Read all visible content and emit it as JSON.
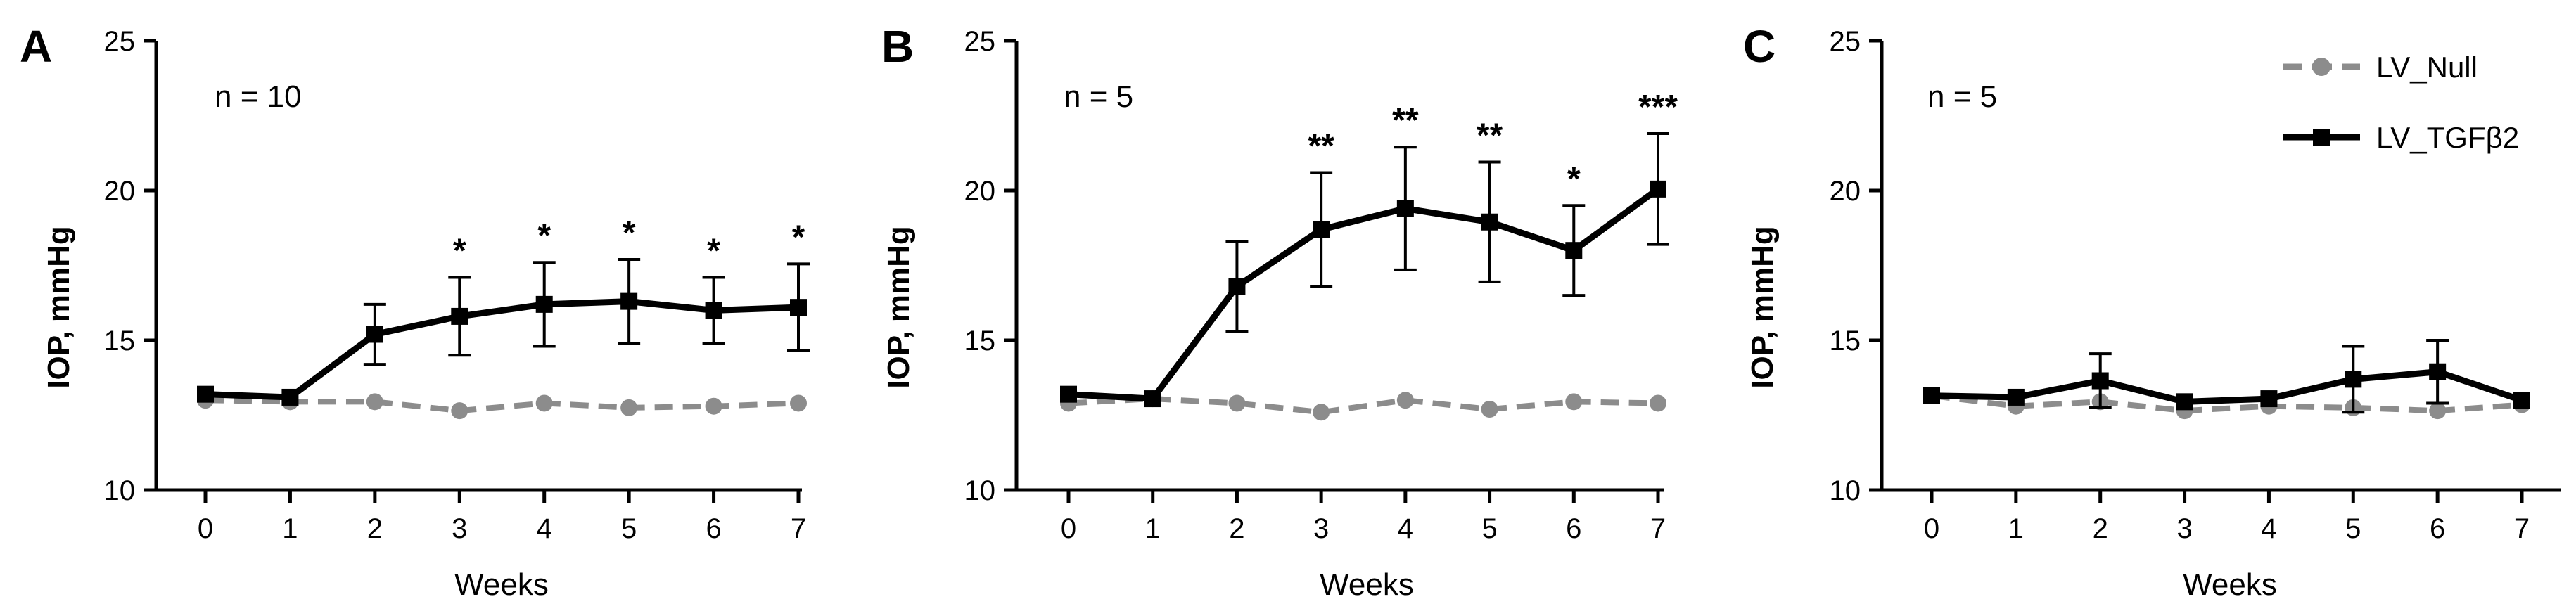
{
  "chart_data": [
    {
      "type": "line",
      "panel": "A",
      "n_label": "n = 10",
      "xlabel": "Weeks",
      "ylabel": "IOP, mmHg",
      "x": [
        0,
        1,
        2,
        3,
        4,
        5,
        6,
        7
      ],
      "xticks": [
        "0",
        "1",
        "2",
        "3",
        "4",
        "5",
        "6",
        "7"
      ],
      "ylim": [
        10,
        25
      ],
      "yticks": [
        "10",
        "15",
        "20",
        "25"
      ],
      "series": [
        {
          "name": "LV_Null",
          "values": [
            13.0,
            12.95,
            12.95,
            12.65,
            12.9,
            12.75,
            12.8,
            12.9
          ],
          "errors": [
            0,
            0,
            0,
            0,
            0,
            0,
            0,
            0
          ]
        },
        {
          "name": "LV_TGFβ2",
          "values": [
            13.2,
            13.1,
            15.2,
            15.8,
            16.2,
            16.3,
            16.0,
            16.1
          ],
          "errors": [
            0,
            0,
            1.0,
            1.3,
            1.4,
            1.4,
            1.1,
            1.45
          ]
        }
      ],
      "significance": [
        "",
        "",
        "",
        "*",
        "*",
        "*",
        "*",
        "*"
      ]
    },
    {
      "type": "line",
      "panel": "B",
      "n_label": "n = 5",
      "xlabel": "Weeks",
      "ylabel": "IOP, mmHg",
      "x": [
        0,
        1,
        2,
        3,
        4,
        5,
        6,
        7
      ],
      "xticks": [
        "0",
        "1",
        "2",
        "3",
        "4",
        "5",
        "6",
        "7"
      ],
      "ylim": [
        10,
        25
      ],
      "yticks": [
        "10",
        "15",
        "20",
        "25"
      ],
      "series": [
        {
          "name": "LV_Null",
          "values": [
            12.9,
            13.05,
            12.9,
            12.6,
            13.0,
            12.7,
            12.95,
            12.9
          ],
          "errors": [
            0,
            0,
            0,
            0,
            0,
            0,
            0,
            0
          ]
        },
        {
          "name": "LV_TGFβ2",
          "values": [
            13.2,
            13.05,
            16.8,
            18.7,
            19.4,
            18.95,
            18.0,
            20.05
          ],
          "errors": [
            0,
            0,
            1.5,
            1.9,
            2.05,
            2.0,
            1.5,
            1.85
          ]
        }
      ],
      "significance": [
        "",
        "",
        "",
        "**",
        "**",
        "**",
        "*",
        "***"
      ]
    },
    {
      "type": "line",
      "panel": "C",
      "n_label": "n = 5",
      "xlabel": "Weeks",
      "ylabel": "IOP, mmHg",
      "x": [
        0,
        1,
        2,
        3,
        4,
        5,
        6,
        7
      ],
      "xticks": [
        "0",
        "1",
        "2",
        "3",
        "4",
        "5",
        "6",
        "7"
      ],
      "ylim": [
        10,
        25
      ],
      "yticks": [
        "10",
        "15",
        "20",
        "25"
      ],
      "series": [
        {
          "name": "LV_Null",
          "values": [
            13.15,
            12.8,
            12.95,
            12.65,
            12.8,
            12.75,
            12.65,
            12.85
          ],
          "errors": [
            0,
            0,
            0,
            0,
            0,
            0,
            0,
            0
          ]
        },
        {
          "name": "LV_TGFβ2",
          "values": [
            13.15,
            13.1,
            13.65,
            12.95,
            13.05,
            13.7,
            13.95,
            13.0
          ],
          "errors": [
            0,
            0,
            0.9,
            0,
            0,
            1.1,
            1.05,
            0
          ]
        }
      ],
      "significance": [
        "",
        "",
        "",
        "",
        "",
        "",
        "",
        ""
      ]
    }
  ],
  "legend": [
    {
      "name": "LV_Null",
      "label": "LV_Null",
      "color": "#8c8c8c",
      "marker": "circle",
      "line": "dashed"
    },
    {
      "name": "LV_TGFβ2",
      "label": "LV_TGFβ2",
      "color": "#000000",
      "marker": "square",
      "line": "solid"
    }
  ],
  "colors": {
    "null_series": "#8c8c8c",
    "tgf_series": "#000000",
    "axis": "#000000"
  }
}
